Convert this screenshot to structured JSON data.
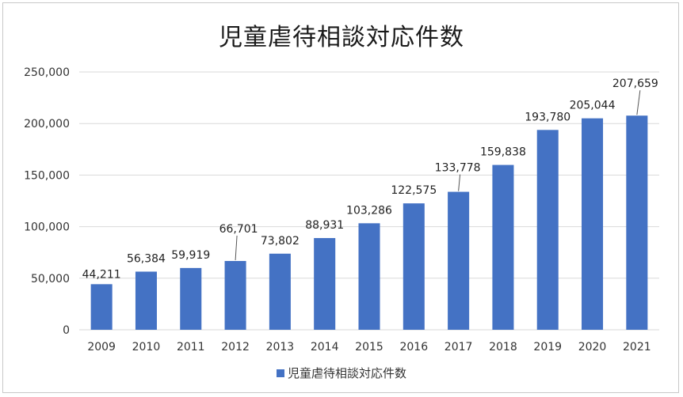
{
  "chart_data": {
    "type": "bar",
    "title": "児童虐待相談対応件数",
    "categories": [
      "2009",
      "2010",
      "2011",
      "2012",
      "2013",
      "2014",
      "2015",
      "2016",
      "2017",
      "2018",
      "2019",
      "2020",
      "2021"
    ],
    "series": [
      {
        "name": "児童虐待相談対応件数",
        "values": [
          44211,
          56384,
          59919,
          66701,
          73802,
          88931,
          103286,
          122575,
          133778,
          159838,
          193780,
          205044,
          207659
        ],
        "labels": [
          "44,211",
          "56,384",
          "59,919",
          "66,701",
          "73,802",
          "88,931",
          "103,286",
          "122,575",
          "133,778",
          "159,838",
          "193,780",
          "205,044",
          "207,659"
        ]
      }
    ],
    "ylim": [
      0,
      250000
    ],
    "yticks": [
      "0",
      "50,000",
      "100,000",
      "150,000",
      "200,000",
      "250,000"
    ],
    "grid": true,
    "legend_position": "bottom",
    "colors": {
      "bar": "#4472c4",
      "grid": "#d9d9d9"
    }
  }
}
